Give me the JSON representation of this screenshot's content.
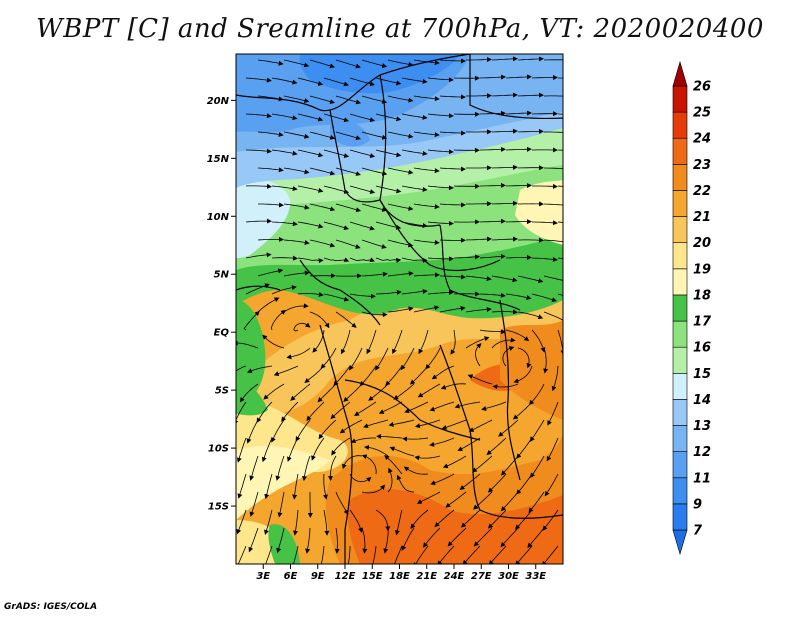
{
  "title": "WBPT [C] and Sreamline at 700hPa, VT: 2020020400",
  "credit": "GrADS: IGES/COLA",
  "map": {
    "lon_range": [
      0,
      36
    ],
    "lat_range": [
      -20,
      24
    ],
    "lat_ticks": [
      {
        "value": 20,
        "label": "20N"
      },
      {
        "value": 15,
        "label": "15N"
      },
      {
        "value": 10,
        "label": "10N"
      },
      {
        "value": 5,
        "label": "5N"
      },
      {
        "value": 0,
        "label": "EQ"
      },
      {
        "value": -5,
        "label": "5S"
      },
      {
        "value": -10,
        "label": "10S"
      },
      {
        "value": -15,
        "label": "15S"
      }
    ],
    "lon_ticks": [
      {
        "value": 3,
        "label": "3E"
      },
      {
        "value": 6,
        "label": "6E"
      },
      {
        "value": 9,
        "label": "9E"
      },
      {
        "value": 12,
        "label": "12E"
      },
      {
        "value": 15,
        "label": "15E"
      },
      {
        "value": 18,
        "label": "18E"
      },
      {
        "value": 21,
        "label": "21E"
      },
      {
        "value": 24,
        "label": "24E"
      },
      {
        "value": 27,
        "label": "27E"
      },
      {
        "value": 30,
        "label": "30E"
      },
      {
        "value": 33,
        "label": "33E"
      }
    ]
  },
  "colorbar": {
    "levels": [
      "7",
      "9",
      "11",
      "12",
      "13",
      "14",
      "15",
      "16",
      "17",
      "18",
      "19",
      "20",
      "21",
      "22",
      "23",
      "24",
      "25",
      "26"
    ],
    "colors": [
      "#1e6ee6",
      "#2a7df0",
      "#3c8ef0",
      "#5aa0f0",
      "#78b4f2",
      "#98c8f6",
      "#d2f0fa",
      "#b4f0a8",
      "#8ce27c",
      "#46c346",
      "#fff5b4",
      "#fde68c",
      "#f8c55a",
      "#f4a62e",
      "#f08c1e",
      "#ee6a14",
      "#e63c0a",
      "#c81400",
      "#a00000"
    ]
  }
}
